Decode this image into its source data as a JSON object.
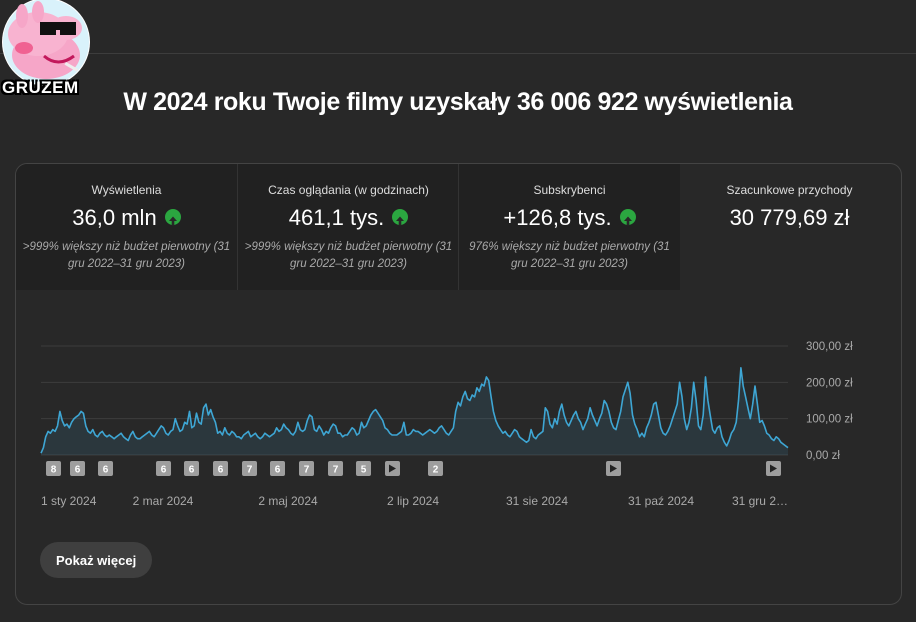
{
  "avatar": {
    "label": "GRUZEM"
  },
  "headline": "W 2024 roku Twoje filmy uzyskały 36 006 922 wyświetlenia",
  "metrics": [
    {
      "label": "Wyświetlenia",
      "value": "36,0 mln",
      "trend": "up",
      "comparison": ">999% większy niż budżet pierwotny (31 gru 2022–31 gru 2023)"
    },
    {
      "label": "Czas oglądania (w godzinach)",
      "value": "461,1 tys.",
      "trend": "up",
      "comparison": ">999% większy niż budżet pierwotny (31 gru 2022–31 gru 2023)"
    },
    {
      "label": "Subskrybenci",
      "value": "+126,8 tys.",
      "trend": "up",
      "comparison": "976% większy niż budżet pierwotny (31 gru 2022–31 gru 2023)"
    },
    {
      "label": "Szacunkowe przychody",
      "value": "30 779,69 zł"
    }
  ],
  "show_more": "Pokaż więcej",
  "colors": {
    "line": "#3ea6d4",
    "up": "#2ba640",
    "background": "#282828"
  },
  "chart_data": {
    "type": "area",
    "x_tick_labels": [
      "1 sty 2024",
      "2 mar 2024",
      "2 maj 2024",
      "2 lip 2024",
      "31 sie 2024",
      "31 paź 2024",
      "31 gru 2…"
    ],
    "y_tick_labels": [
      "300,00 zł",
      "200,00 zł",
      "100,00 zł",
      "0,00 zł"
    ],
    "ylim": [
      0,
      300
    ],
    "grid": true,
    "y_axis_side": "right",
    "series": [
      {
        "values": [
          5,
          20,
          50,
          65,
          60,
          70,
          65,
          80,
          120,
          95,
          80,
          85,
          75,
          90,
          100,
          105,
          110,
          120,
          115,
          80,
          65,
          60,
          70,
          55,
          50,
          60,
          65,
          55,
          50,
          55,
          50,
          45,
          50,
          55,
          60,
          50,
          45,
          40,
          55,
          65,
          50,
          45,
          45,
          50,
          55,
          60,
          65,
          55,
          50,
          60,
          70,
          80,
          75,
          60,
          55,
          65,
          70,
          100,
          80,
          65,
          70,
          90,
          85,
          120,
          75,
          80,
          115,
          90,
          85,
          130,
          140,
          110,
          125,
          105,
          90,
          60,
          65,
          55,
          75,
          60,
          55,
          65,
          60,
          50,
          50,
          45,
          55,
          60,
          65,
          50,
          55,
          60,
          50,
          45,
          50,
          60,
          55,
          50,
          55,
          60,
          75,
          65,
          70,
          85,
          75,
          70,
          60,
          55,
          65,
          90,
          70,
          65,
          70,
          95,
          110,
          105,
          70,
          65,
          80,
          70,
          55,
          65,
          60,
          75,
          85,
          80,
          60,
          60,
          50,
          55,
          55,
          65,
          75,
          70,
          55,
          60,
          90,
          75,
          80,
          95,
          110,
          120,
          125,
          115,
          105,
          95,
          75,
          70,
          60,
          55,
          55,
          55,
          60,
          65,
          90,
          55,
          55,
          60,
          70,
          65,
          65,
          60,
          55,
          60,
          65,
          70,
          65,
          60,
          65,
          75,
          80,
          70,
          60,
          55,
          65,
          75,
          120,
          145,
          135,
          160,
          175,
          155,
          150,
          165,
          160,
          185,
          175,
          195,
          190,
          215,
          205,
          160,
          120,
          95,
          80,
          70,
          60,
          65,
          55,
          50,
          60,
          70,
          65,
          50,
          45,
          40,
          35,
          40,
          70,
          50,
          45,
          55,
          60,
          65,
          130,
          120,
          85,
          75,
          100,
          85,
          120,
          140,
          110,
          90,
          80,
          95,
          110,
          120,
          100,
          90,
          70,
          85,
          100,
          130,
          110,
          95,
          80,
          100,
          115,
          150,
          140,
          120,
          90,
          75,
          70,
          95,
          120,
          160,
          180,
          200,
          170,
          110,
          85,
          70,
          50,
          60,
          50,
          75,
          90,
          110,
          140,
          145,
          110,
          75,
          60,
          55,
          65,
          80,
          100,
          120,
          140,
          200,
          160,
          100,
          70,
          90,
          130,
          200,
          150,
          80,
          70,
          110,
          215,
          150,
          110,
          70,
          60,
          75,
          80,
          50,
          35,
          25,
          40,
          60,
          70,
          90,
          150,
          240,
          190,
          160,
          130,
          100,
          140,
          190,
          140,
          90,
          95,
          80,
          60,
          55,
          45,
          40,
          50,
          45,
          35,
          30,
          25,
          20
        ]
      }
    ],
    "markers": [
      {
        "label": "8"
      },
      {
        "label": "6"
      },
      {
        "label": "6"
      },
      {
        "label": "6"
      },
      {
        "label": "6"
      },
      {
        "label": "6"
      },
      {
        "label": "7"
      },
      {
        "label": "6"
      },
      {
        "label": "7"
      },
      {
        "label": "7"
      },
      {
        "label": "5"
      },
      {
        "label": "▶"
      },
      {
        "label": "2"
      },
      {
        "label": "▶"
      },
      {
        "label": "▶"
      }
    ]
  }
}
